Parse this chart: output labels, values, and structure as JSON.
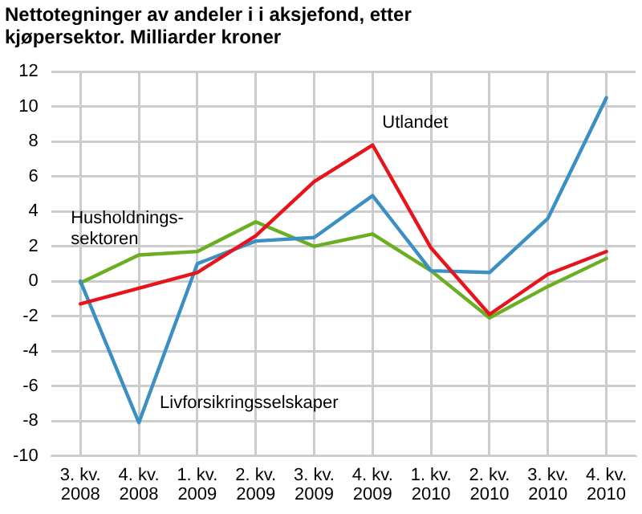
{
  "chart_data": {
    "type": "line",
    "title": "Nettotegninger av andeler i i aksjefond, etter kjøpersektor. Milliarder kroner",
    "categories": [
      "3. kv. 2008",
      "4. kv. 2008",
      "1. kv. 2009",
      "2. kv. 2009",
      "3. kv. 2009",
      "4. kv. 2009",
      "1. kv. 2010",
      "2. kv. 2010",
      "3. kv. 2010",
      "4. kv. 2010"
    ],
    "series": [
      {
        "name": "Utlandet",
        "color": "#e8141d",
        "values": [
          -1.3,
          -0.4,
          0.5,
          2.6,
          5.7,
          7.8,
          1.9,
          -1.9,
          0.4,
          1.7
        ]
      },
      {
        "name": "Livforsikringsselskaper",
        "color": "#3a8fc4",
        "values": [
          0,
          -8.1,
          1.0,
          2.3,
          2.5,
          4.9,
          0.6,
          0.5,
          3.6,
          10.5
        ]
      },
      {
        "name": "Husholdnings- sektoren",
        "color": "#6aae22",
        "values": [
          -0.1,
          1.5,
          1.7,
          3.4,
          2.0,
          2.7,
          0.6,
          -2.1,
          -0.3,
          1.3
        ]
      }
    ],
    "ylim": [
      -10,
      12
    ],
    "yticks": [
      -10,
      -8,
      -6,
      -4,
      -2,
      0,
      2,
      4,
      6,
      8,
      10,
      12
    ],
    "grid": true,
    "legend": false,
    "marker": "none",
    "line_style": "solid"
  }
}
